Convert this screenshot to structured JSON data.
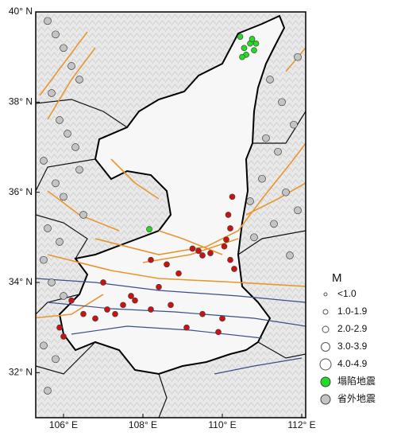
{
  "map": {
    "type": "scatter",
    "xlim": [
      105.3,
      112.1
    ],
    "ylim": [
      31,
      40
    ],
    "xticks": [
      {
        "value": 106,
        "label": "106° E"
      },
      {
        "value": 108,
        "label": "108° E"
      },
      {
        "value": 110,
        "label": "110° E"
      },
      {
        "value": 112,
        "label": "112° E"
      }
    ],
    "yticks": [
      {
        "value": 32,
        "label": "32° N"
      },
      {
        "value": 34,
        "label": "34° N"
      },
      {
        "value": 36,
        "label": "36° N"
      },
      {
        "value": 38,
        "label": "38° N"
      },
      {
        "value": 40,
        "label": "40° N"
      }
    ],
    "legend_title": "M",
    "size_classes": [
      "<1.0",
      "1.0-1.9",
      "2.0-2.9",
      "3.0-3.9",
      "4.0-4.9"
    ],
    "series": [
      {
        "name": "塌陷地震",
        "color": "#22dd22",
        "lon": [
          110.45,
          110.55,
          110.7,
          110.8,
          110.85,
          110.6,
          110.5,
          110.75,
          108.16
        ],
        "lat": [
          39.45,
          39.2,
          39.3,
          39.15,
          39.3,
          39.05,
          39.0,
          39.4,
          35.18
        ]
      },
      {
        "color": "#cc1111",
        "lon": [
          109.25,
          109.4,
          109.5,
          109.7,
          110.05,
          110.1,
          110.2,
          110.15,
          110.25,
          110.2,
          108.2,
          108.6,
          107.5,
          107.8,
          107.1,
          106.8,
          106.2,
          105.9,
          106.0,
          106.5,
          107.3,
          107.7,
          108.2,
          108.7,
          109.1,
          109.5,
          110.0,
          108.4,
          107.0,
          109.9,
          110.3,
          108.9
        ],
        "lat": [
          34.75,
          34.7,
          34.6,
          34.65,
          34.8,
          34.95,
          35.2,
          35.5,
          35.9,
          34.5,
          34.5,
          34.4,
          33.5,
          33.6,
          33.4,
          33.2,
          33.6,
          33.0,
          32.8,
          33.3,
          33.3,
          33.7,
          33.4,
          33.5,
          33.0,
          33.3,
          33.2,
          33.9,
          34.0,
          32.9,
          34.3,
          34.2
        ]
      },
      {
        "name": "省外地震",
        "color": "#c4c4c4",
        "lon": [
          105.6,
          105.8,
          106.0,
          106.2,
          106.4,
          105.7,
          105.9,
          106.1,
          106.3,
          105.5,
          105.8,
          106.0,
          106.5,
          105.6,
          105.9,
          105.5,
          105.7,
          106.0,
          105.5,
          105.8,
          111.2,
          111.5,
          111.8,
          111.4,
          111.0,
          111.6,
          111.9,
          111.3,
          110.8,
          111.7,
          110.7,
          111.1,
          111.9,
          106.4,
          105.6
        ],
        "lat": [
          39.8,
          39.5,
          39.2,
          38.8,
          38.5,
          38.2,
          37.6,
          37.3,
          37.0,
          36.7,
          36.2,
          35.9,
          35.5,
          35.2,
          34.9,
          34.5,
          34.0,
          33.7,
          32.6,
          32.3,
          38.5,
          38.0,
          37.5,
          36.9,
          36.3,
          36.0,
          35.6,
          35.3,
          35.0,
          34.6,
          35.8,
          37.2,
          39.0,
          36.5,
          31.6
        ]
      }
    ]
  }
}
